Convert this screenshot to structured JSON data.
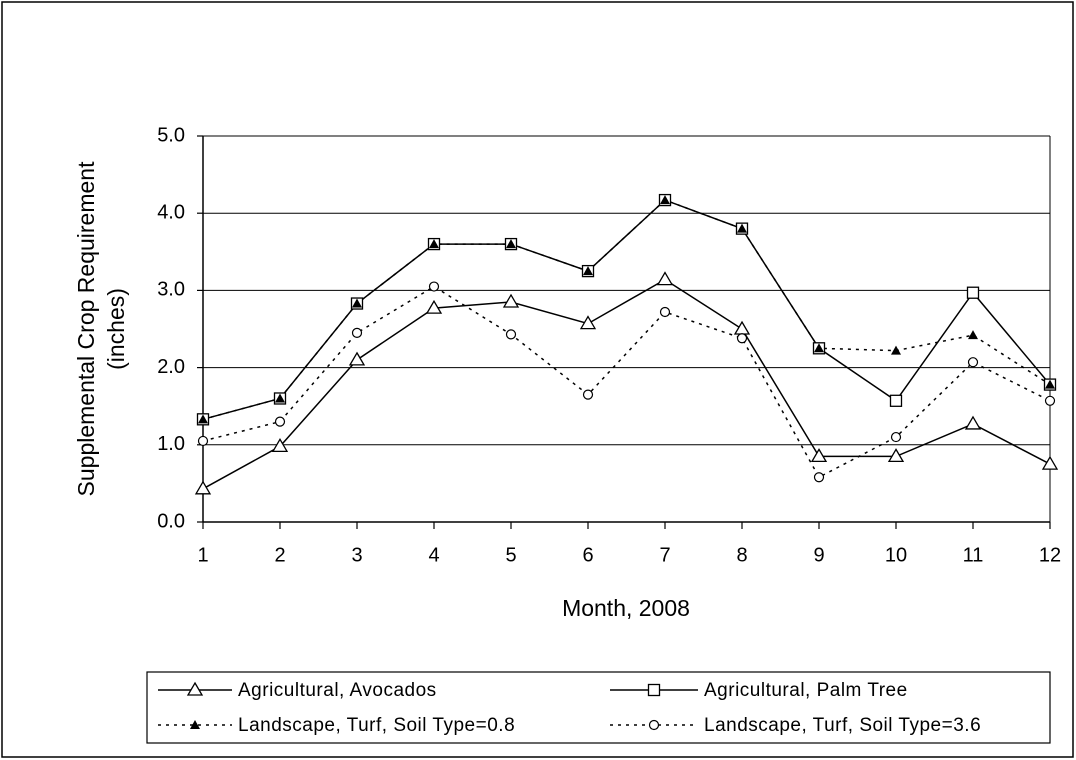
{
  "chart_data": {
    "type": "line",
    "ylabel": [
      "Supplemental Crop Requirement",
      "(inches)"
    ],
    "xlabel": "Month, 2008",
    "x": [
      1,
      2,
      3,
      4,
      5,
      6,
      7,
      8,
      9,
      10,
      11,
      12
    ],
    "xlim": [
      1,
      12
    ],
    "xticks": [
      1,
      2,
      3,
      4,
      5,
      6,
      7,
      8,
      9,
      10,
      11,
      12
    ],
    "ylim": [
      0,
      5
    ],
    "yticks": [
      {
        "value": 0,
        "label": "0.0"
      },
      {
        "value": 1,
        "label": "1.0"
      },
      {
        "value": 2,
        "label": "2.0"
      },
      {
        "value": 3,
        "label": "3.0"
      },
      {
        "value": 4,
        "label": "4.0"
      },
      {
        "value": 5,
        "label": "5.0"
      }
    ],
    "grid": true,
    "legend": "bottom",
    "series": [
      {
        "name": "Agricultural, Avocados",
        "color": "#000000",
        "line": "solid",
        "marker": "triangle-open",
        "values": [
          0.43,
          0.98,
          2.1,
          2.77,
          2.85,
          2.57,
          3.14,
          2.5,
          0.85,
          0.85,
          1.27,
          0.75
        ]
      },
      {
        "name": "Agricultural, Palm Tree",
        "color": "#000000",
        "line": "solid",
        "marker": "square-open",
        "values": [
          1.33,
          1.6,
          2.83,
          3.6,
          3.6,
          3.25,
          4.17,
          3.8,
          2.25,
          1.57,
          2.97,
          1.78
        ]
      },
      {
        "name": "Landscape, Turf, Soil Type=0.8",
        "color": "#000000",
        "line": "dotted",
        "marker": "triangle-filled",
        "values": [
          1.33,
          1.6,
          2.83,
          3.6,
          3.6,
          3.25,
          4.17,
          3.8,
          2.25,
          2.22,
          2.42,
          1.78
        ]
      },
      {
        "name": "Landscape, Turf, Soil Type=3.6",
        "color": "#000000",
        "line": "dotted",
        "marker": "circle-open",
        "values": [
          1.05,
          1.3,
          2.45,
          3.05,
          2.43,
          1.65,
          2.72,
          2.38,
          0.58,
          1.1,
          2.07,
          1.57
        ]
      }
    ]
  }
}
